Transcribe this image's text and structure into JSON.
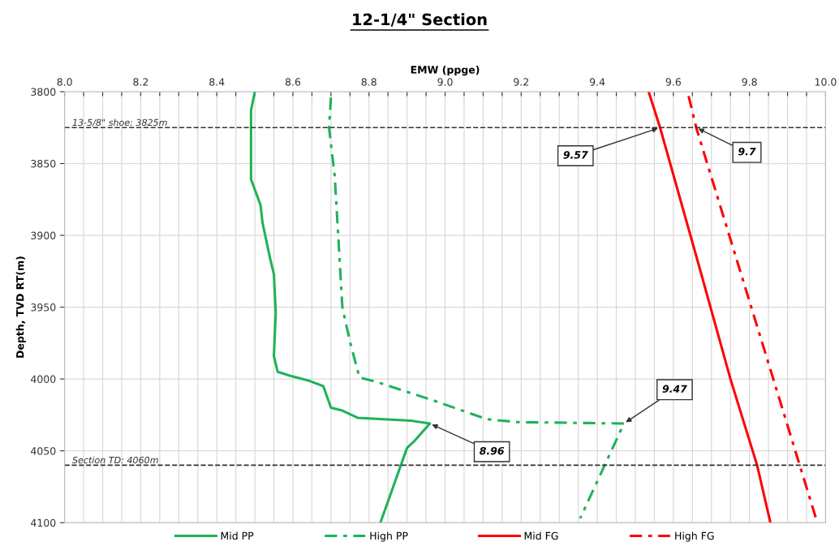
{
  "chart_data": {
    "type": "line",
    "title": "12-1/4\" Section",
    "xlabel": "EMW (ppge)",
    "ylabel": "Depth, TVD RT(m)",
    "orientation": "horizontal",
    "xlim": [
      8.0,
      10.0
    ],
    "xticks": [
      {
        "value": 8.0,
        "label": "8.0"
      },
      {
        "value": 8.05,
        "label": null
      },
      {
        "value": 8.1,
        "label": null
      },
      {
        "value": 8.15,
        "label": null
      },
      {
        "value": 8.2,
        "label": "8.2"
      },
      {
        "value": 8.25,
        "label": null
      },
      {
        "value": 8.3,
        "label": null
      },
      {
        "value": 8.35,
        "label": null
      },
      {
        "value": 8.4,
        "label": "8.4"
      },
      {
        "value": 8.45,
        "label": null
      },
      {
        "value": 8.5,
        "label": null
      },
      {
        "value": 8.55,
        "label": null
      },
      {
        "value": 8.6,
        "label": "8.6"
      },
      {
        "value": 8.65,
        "label": null
      },
      {
        "value": 8.7,
        "label": null
      },
      {
        "value": 8.75,
        "label": null
      },
      {
        "value": 8.8,
        "label": "8.8"
      },
      {
        "value": 8.85,
        "label": null
      },
      {
        "value": 8.9,
        "label": null
      },
      {
        "value": 8.95,
        "label": null
      },
      {
        "value": 9.0,
        "label": "9.0"
      },
      {
        "value": 9.05,
        "label": null
      },
      {
        "value": 9.1,
        "label": null
      },
      {
        "value": 9.15,
        "label": null
      },
      {
        "value": 9.2,
        "label": "9.2"
      },
      {
        "value": 9.25,
        "label": null
      },
      {
        "value": 9.3,
        "label": null
      },
      {
        "value": 9.35,
        "label": null
      },
      {
        "value": 9.4,
        "label": "9.4"
      },
      {
        "value": 9.45,
        "label": null
      },
      {
        "value": 9.5,
        "label": null
      },
      {
        "value": 9.55,
        "label": null
      },
      {
        "value": 9.6,
        "label": "9.6"
      },
      {
        "value": 9.65,
        "label": null
      },
      {
        "value": 9.7,
        "label": null
      },
      {
        "value": 9.75,
        "label": null
      },
      {
        "value": 9.8,
        "label": "9.8"
      },
      {
        "value": 9.85,
        "label": null
      },
      {
        "value": 9.9,
        "label": null
      },
      {
        "value": 9.95,
        "label": null
      },
      {
        "value": 10.0,
        "label": "10.0"
      }
    ],
    "ylim": [
      4100,
      3800
    ],
    "yticks": [
      3800,
      3850,
      3900,
      3950,
      4000,
      4050,
      4100
    ],
    "grid": true,
    "legend": "bottom",
    "series": [
      {
        "name": "Mid PP",
        "color": "#1fb35a",
        "line_style": "solid",
        "x": [
          3800,
          3813,
          3861,
          3879,
          3891,
          3916,
          3927,
          3954,
          3984,
          3995,
          3997.5,
          4001,
          4005,
          4020,
          4022,
          4027,
          4029,
          4031,
          4043,
          4048,
          4100
        ],
        "values": [
          8.5,
          8.49,
          8.49,
          8.515,
          8.52,
          8.54,
          8.55,
          8.555,
          8.55,
          8.56,
          8.59,
          8.64,
          8.68,
          8.7,
          8.73,
          8.77,
          8.91,
          8.96,
          8.92,
          8.9,
          8.83
        ]
      },
      {
        "name": "High PP",
        "color": "#1fb35a",
        "line_style": "dashdot",
        "x": [
          3804,
          3825,
          3859,
          3904,
          3950,
          3974,
          3999,
          4002,
          4015,
          4028,
          4030,
          4031,
          4097
        ],
        "values": [
          8.7,
          8.695,
          8.71,
          8.72,
          8.73,
          8.75,
          8.775,
          8.82,
          8.97,
          9.11,
          9.19,
          9.47,
          9.355
        ]
      },
      {
        "name": "Mid FG",
        "color": "#ff0000",
        "line_style": "solid",
        "x": [
          3800,
          3825,
          3919,
          4000,
          4060,
          4100
        ],
        "values": [
          9.535,
          9.565,
          9.665,
          9.75,
          9.82,
          9.855
        ]
      },
      {
        "name": "High FG",
        "color": "#ff0000",
        "line_style": "dashdot",
        "x": [
          3803,
          3825,
          4098
        ],
        "values": [
          9.64,
          9.66,
          9.976
        ]
      }
    ],
    "ref_lines": [
      {
        "axis": "y",
        "value": 3825,
        "label": "13-5/8\" shoe: 3825m",
        "color": "#333333",
        "line_style": "dashed"
      },
      {
        "axis": "y",
        "value": 4060,
        "label": "Section TD: 4060m",
        "color": "#333333",
        "line_style": "dashed"
      }
    ],
    "annotations": [
      {
        "text": "9.57",
        "x": 9.565,
        "y": 3825
      },
      {
        "text": "9.7",
        "x": 9.66,
        "y": 3825
      },
      {
        "text": "8.96",
        "x": 8.96,
        "y": 4031
      },
      {
        "text": "9.47",
        "x": 9.47,
        "y": 4031
      }
    ]
  }
}
